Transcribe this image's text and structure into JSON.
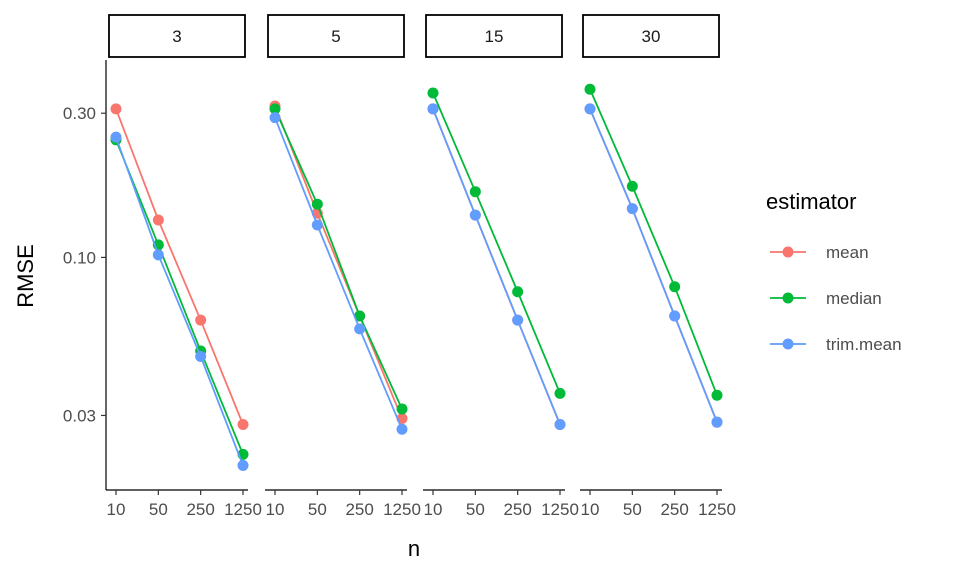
{
  "chart_data": {
    "type": "line",
    "facets": [
      "3",
      "5",
      "15",
      "30"
    ],
    "x": [
      10,
      50,
      250,
      1250
    ],
    "x_tick_labels": [
      "10",
      "50",
      "250",
      "1250"
    ],
    "xlabel": "n",
    "ylabel": "RMSE",
    "y_scale": "log",
    "y_ticks": [
      0.03,
      0.1,
      0.3
    ],
    "y_tick_labels": [
      "0.03",
      "0.10",
      "0.30"
    ],
    "ylim": [
      0.017,
      0.45
    ],
    "legend": {
      "title": "estimator",
      "placement": "right"
    },
    "grid": false,
    "series": [
      {
        "name": "mean",
        "color": "#F8766D",
        "values": {
          "3": [
            0.31,
            0.133,
            0.062,
            0.028
          ],
          "5": [
            0.317,
            0.14,
            0.064,
            0.0293
          ],
          "15": [
            0.31,
            0.138,
            0.062,
            0.028
          ],
          "30": [
            0.31,
            0.145,
            0.064,
            0.0285
          ]
        }
      },
      {
        "name": "median",
        "color": "#00BA38",
        "values": {
          "3": [
            0.245,
            0.11,
            0.049,
            0.0223
          ],
          "5": [
            0.31,
            0.15,
            0.064,
            0.0315
          ],
          "15": [
            0.35,
            0.165,
            0.077,
            0.0355
          ],
          "30": [
            0.36,
            0.172,
            0.08,
            0.035
          ]
        }
      },
      {
        "name": "trim.mean",
        "color": "#619CFF",
        "values": {
          "3": [
            0.25,
            0.102,
            0.047,
            0.0205
          ],
          "5": [
            0.29,
            0.128,
            0.058,
            0.027
          ],
          "15": [
            0.31,
            0.138,
            0.062,
            0.028
          ],
          "30": [
            0.31,
            0.145,
            0.064,
            0.0285
          ]
        }
      }
    ]
  }
}
